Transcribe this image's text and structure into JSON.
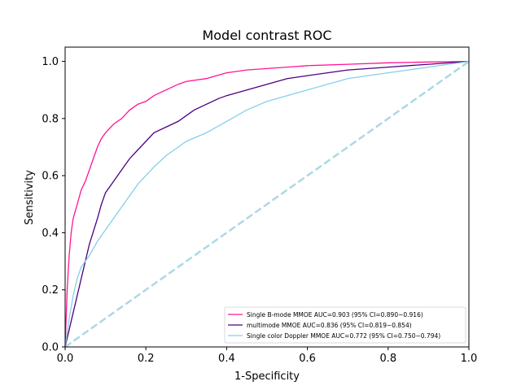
{
  "chart_data": {
    "type": "line",
    "title": "Model contrast ROC",
    "xlabel": "1-Specificity",
    "ylabel": "Sensitivity",
    "xlim": [
      0,
      1
    ],
    "ylim": [
      0,
      1.05
    ],
    "xticks": [
      "0.0",
      "0.2",
      "0.4",
      "0.6",
      "0.8",
      "1.0"
    ],
    "yticks": [
      "0.0",
      "0.2",
      "0.4",
      "0.6",
      "0.8",
      "1.0"
    ],
    "grid": false,
    "legend_position": "lower-right",
    "series": [
      {
        "name": "Single B-mode MMOE AUC=0.903 (95% CI=0.890~0.916)",
        "color": "#ff1493",
        "x": [
          0,
          0.005,
          0.01,
          0.015,
          0.02,
          0.03,
          0.04,
          0.05,
          0.06,
          0.07,
          0.08,
          0.09,
          0.1,
          0.12,
          0.14,
          0.16,
          0.18,
          0.2,
          0.22,
          0.25,
          0.28,
          0.3,
          0.35,
          0.4,
          0.45,
          0.5,
          0.55,
          0.6,
          0.7,
          0.8,
          0.9,
          1.0
        ],
        "y": [
          0,
          0.2,
          0.32,
          0.4,
          0.45,
          0.5,
          0.55,
          0.58,
          0.62,
          0.66,
          0.7,
          0.73,
          0.75,
          0.78,
          0.8,
          0.83,
          0.85,
          0.86,
          0.88,
          0.9,
          0.92,
          0.93,
          0.94,
          0.96,
          0.97,
          0.975,
          0.98,
          0.985,
          0.99,
          0.995,
          0.998,
          1.0
        ]
      },
      {
        "name": "multimode MMOE AUC=0.836 (95% CI=0.819~0.854)",
        "color": "#4b0082",
        "x": [
          0,
          0.02,
          0.04,
          0.06,
          0.08,
          0.09,
          0.1,
          0.12,
          0.14,
          0.16,
          0.18,
          0.2,
          0.22,
          0.25,
          0.28,
          0.3,
          0.32,
          0.35,
          0.38,
          0.4,
          0.45,
          0.5,
          0.55,
          0.6,
          0.65,
          0.7,
          0.8,
          0.9,
          1.0
        ],
        "y": [
          0,
          0.12,
          0.24,
          0.36,
          0.45,
          0.5,
          0.54,
          0.58,
          0.62,
          0.66,
          0.69,
          0.72,
          0.75,
          0.77,
          0.79,
          0.81,
          0.83,
          0.85,
          0.87,
          0.88,
          0.9,
          0.92,
          0.94,
          0.95,
          0.96,
          0.97,
          0.98,
          0.99,
          1.0
        ]
      },
      {
        "name": "Single color Doppler MMOE AUC=0.772 (95% CI=0.750~0.794)",
        "color": "#87ceeb",
        "x": [
          0,
          0.01,
          0.02,
          0.03,
          0.04,
          0.06,
          0.08,
          0.1,
          0.12,
          0.14,
          0.16,
          0.18,
          0.2,
          0.22,
          0.25,
          0.28,
          0.3,
          0.35,
          0.4,
          0.45,
          0.5,
          0.55,
          0.6,
          0.65,
          0.7,
          0.75,
          0.8,
          0.85,
          0.9,
          0.95,
          1.0
        ],
        "y": [
          0,
          0.1,
          0.18,
          0.24,
          0.28,
          0.32,
          0.37,
          0.41,
          0.45,
          0.49,
          0.53,
          0.57,
          0.6,
          0.63,
          0.67,
          0.7,
          0.72,
          0.75,
          0.79,
          0.83,
          0.86,
          0.88,
          0.9,
          0.92,
          0.94,
          0.95,
          0.96,
          0.97,
          0.98,
          0.99,
          1.0
        ]
      },
      {
        "name": "",
        "color": "#add8e6",
        "dashed": true,
        "x": [
          0,
          1
        ],
        "y": [
          0,
          1
        ]
      }
    ]
  }
}
